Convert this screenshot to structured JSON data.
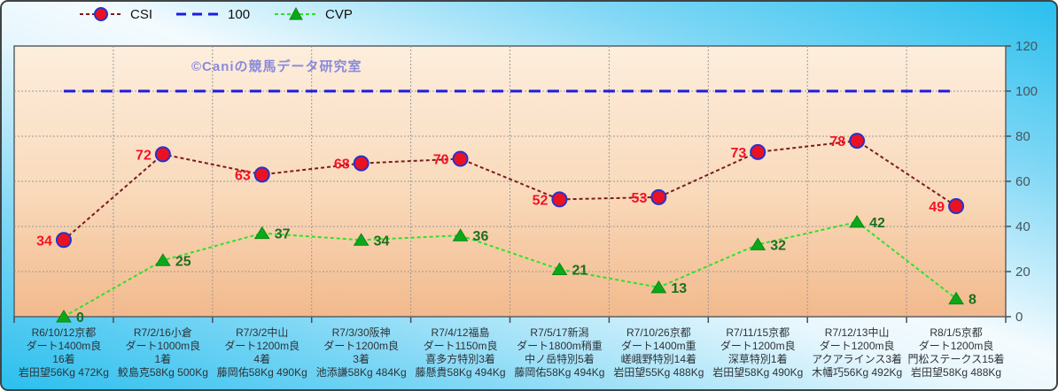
{
  "watermark": "©Caniの競馬データ研究室",
  "legend": {
    "items": [
      {
        "label": "CSI"
      },
      {
        "label": "100"
      },
      {
        "label": "CVP"
      }
    ]
  },
  "chart_data": {
    "type": "line",
    "title": "",
    "xlabel": "",
    "ylabel": "",
    "ylim": [
      0,
      120
    ],
    "yticks": [
      0,
      20,
      40,
      60,
      80,
      100,
      120
    ],
    "grid": true,
    "legend_position": "top-left",
    "y_axis_side": "right",
    "reference_line": {
      "name": "100",
      "value": 100,
      "color": "#1c1ce0"
    },
    "categories": [
      {
        "lines": [
          "R6/10/12京都",
          "ダート1400m良",
          "16着",
          "岩田望56Kg 472Kg"
        ]
      },
      {
        "lines": [
          "R7/2/16小倉",
          "ダート1000m良",
          "1着",
          "鮫島克58Kg 500Kg"
        ]
      },
      {
        "lines": [
          "R7/3/2中山",
          "ダート1200m良",
          "4着",
          "藤岡佑58Kg 490Kg"
        ]
      },
      {
        "lines": [
          "R7/3/30阪神",
          "ダート1200m良",
          "3着",
          "池添謙58Kg 484Kg"
        ]
      },
      {
        "lines": [
          "R7/4/12福島",
          "ダート1150m良",
          "喜多方特別3着",
          "藤懸貴58Kg 494Kg"
        ]
      },
      {
        "lines": [
          "R7/5/17新潟",
          "ダート1800m稍重",
          "中ノ岳特別5着",
          "藤岡佑58Kg 494Kg"
        ]
      },
      {
        "lines": [
          "R7/10/26京都",
          "ダート1400m重",
          "嵯峨野特別14着",
          "岩田望55Kg 488Kg"
        ]
      },
      {
        "lines": [
          "R7/11/15京都",
          "ダート1200m良",
          "深草特別1着",
          "岩田望58Kg 490Kg"
        ]
      },
      {
        "lines": [
          "R7/12/13中山",
          "ダート1200m良",
          "アクアラインス3着",
          "木幡巧56Kg 492Kg"
        ]
      },
      {
        "lines": [
          "R8/1/5京都",
          "ダート1200m良",
          "門松ステークス15着",
          "岩田望58Kg 488Kg"
        ]
      }
    ],
    "series": [
      {
        "name": "CSI",
        "marker": "circle",
        "line_color": "#7b1d1d",
        "marker_fill": "#ea1222",
        "marker_edge": "#2633cc",
        "label_color": "#f51126",
        "values": [
          34,
          72,
          63,
          68,
          70,
          52,
          53,
          73,
          78,
          49
        ]
      },
      {
        "name": "CVP",
        "marker": "triangle",
        "line_color": "#2ce32c",
        "marker_fill": "#0ca81a",
        "marker_edge": "#0a8a12",
        "label_color": "#1d6e1d",
        "values": [
          0,
          25,
          37,
          34,
          36,
          21,
          13,
          32,
          42,
          8
        ]
      }
    ],
    "plot_colors": {
      "fill_top": "#fdeedd",
      "fill_mid": "#f9d9ba",
      "fill_bottom": "#f2b98c",
      "border": "#5a6066",
      "gridline": "#9a9a9a"
    }
  }
}
